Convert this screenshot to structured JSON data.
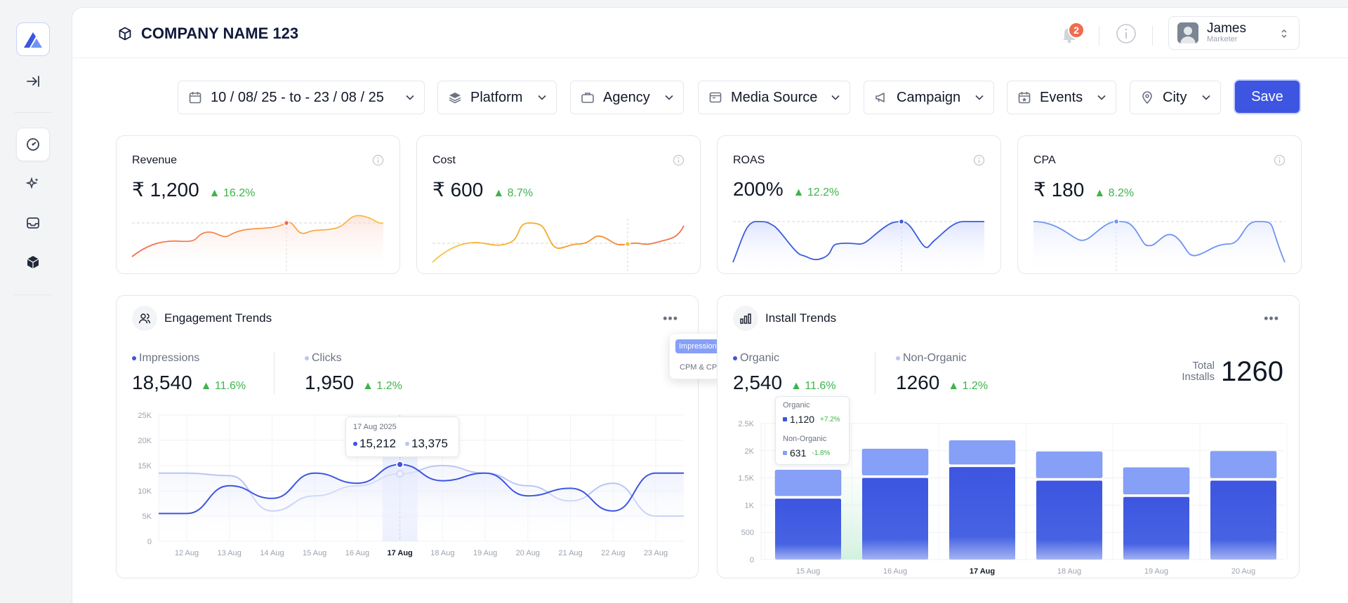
{
  "header": {
    "company": "COMPANY NAME 123",
    "notif_count": "2",
    "user_name": "James",
    "user_role": "Marketer"
  },
  "filters": {
    "date_range": "10 / 08/ 25 - to - 23 / 08 / 25",
    "platform": "Platform",
    "agency": "Agency",
    "media_source": "Media Source",
    "campaign": "Campaign",
    "events": "Events",
    "city": "City",
    "save": "Save"
  },
  "kpis": [
    {
      "title": "Revenue",
      "value": "₹ 1,200",
      "delta": "16.2%",
      "color": "#f26b4f",
      "color2": "#f9c244"
    },
    {
      "title": "Cost",
      "value": "₹ 600",
      "delta": "8.7%",
      "color": "#f5a524",
      "color2": "#f26b4f"
    },
    {
      "title": "ROAS",
      "value": "200%",
      "delta": "12.2%",
      "color": "#3d5bd9",
      "color2": "#3d5bd9"
    },
    {
      "title": "CPA",
      "value": "₹ 180",
      "delta": "8.2%",
      "color": "#6f94f2",
      "color2": "#6f94f2"
    }
  ],
  "engagement": {
    "title": "Engagement Trends",
    "m1_label": "Impressions",
    "m1_value": "18,540",
    "m1_delta": "11.6%",
    "m2_label": "Clicks",
    "m2_value": "1,950",
    "m2_delta": "1.2%",
    "menu": [
      "Impressions & Clicks",
      "CPM & CPC"
    ],
    "tooltip": {
      "date": "17 Aug 2025",
      "v1": "15,212",
      "v2": "13,375"
    }
  },
  "install": {
    "title": "Install Trends",
    "m1_label": "Organic",
    "m1_value": "2,540",
    "m1_delta": "11.6%",
    "m2_label": "Non-Organic",
    "m2_value": "1260",
    "m2_delta": "1.2%",
    "total_label_1": "Total",
    "total_label_2": "Installs",
    "total_value": "1260",
    "tooltip": {
      "l1": "Organic",
      "v1": "1,120",
      "d1": "+7.2%",
      "l2": "Non-Organic",
      "v2": "631",
      "d2": "-1.8%"
    }
  },
  "chart_data": [
    {
      "type": "line",
      "title": "Engagement Trends",
      "categories": [
        "12 Aug",
        "13 Aug",
        "14 Aug",
        "15 Aug",
        "16 Aug",
        "17 Aug",
        "18 Aug",
        "19 Aug",
        "20 Aug",
        "21 Aug",
        "22 Aug",
        "23 Aug"
      ],
      "series": [
        {
          "name": "Impressions",
          "values": [
            5500,
            11000,
            8500,
            13500,
            11500,
            15212,
            12000,
            13500,
            9000,
            10500,
            6000,
            13500
          ]
        },
        {
          "name": "Clicks",
          "values": [
            13500,
            13000,
            6000,
            9000,
            11000,
            13375,
            15000,
            13500,
            11000,
            8000,
            11500,
            5000
          ]
        }
      ],
      "ylim": [
        0,
        25000
      ],
      "yticks": [
        "0",
        "5K",
        "10K",
        "15K",
        "20K",
        "25K"
      ],
      "highlight": "17 Aug",
      "grid": true
    },
    {
      "type": "bar",
      "title": "Install Trends",
      "categories": [
        "15 Aug",
        "16 Aug",
        "17 Aug",
        "18 Aug",
        "19 Aug",
        "20 Aug"
      ],
      "series": [
        {
          "name": "Organic",
          "values": [
            1120,
            1500,
            1700,
            1450,
            1150,
            1450
          ]
        },
        {
          "name": "Non-Organic",
          "values": [
            631,
            640,
            580,
            640,
            650,
            650
          ]
        }
      ],
      "ylim": [
        0,
        2500
      ],
      "yticks": [
        "0",
        "500",
        "1K",
        "1.5K",
        "2K",
        "2.5K"
      ],
      "highlight": "17 Aug",
      "grid": true
    }
  ]
}
